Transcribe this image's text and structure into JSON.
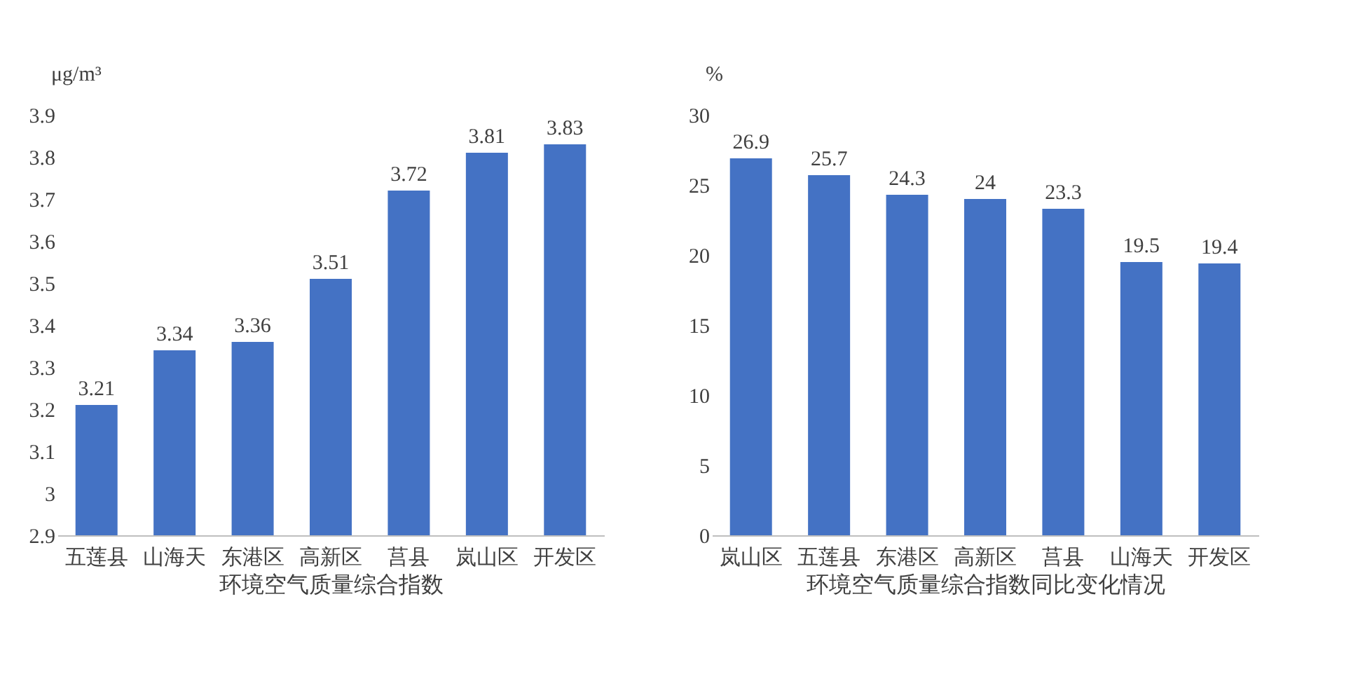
{
  "chart_data": [
    {
      "type": "bar",
      "xlabel": "环境空气质量综合指数",
      "ylabel": "μg/m³",
      "categories": [
        "五莲县",
        "山海天",
        "东港区",
        "高新区",
        "莒县",
        "岚山区",
        "开发区"
      ],
      "values": [
        3.21,
        3.34,
        3.36,
        3.51,
        3.72,
        3.81,
        3.83
      ],
      "color": "#4472c4",
      "ylim": [
        2.9,
        3.9
      ],
      "yticks": [
        2.9,
        3,
        3.1,
        3.2,
        3.3,
        3.4,
        3.5,
        3.6,
        3.7,
        3.8,
        3.9
      ],
      "grid": false,
      "data_labels": true
    },
    {
      "type": "bar",
      "xlabel": "环境空气质量综合指数同比变化情况",
      "ylabel": "%",
      "categories": [
        "岚山区",
        "五莲县",
        "东港区",
        "高新区",
        "莒县",
        "山海天",
        "开发区"
      ],
      "values": [
        26.9,
        25.7,
        24.3,
        24,
        23.3,
        19.5,
        19.4
      ],
      "color": "#4472c4",
      "ylim": [
        0,
        30
      ],
      "yticks": [
        0,
        5,
        10,
        15,
        20,
        25,
        30
      ],
      "grid": false,
      "data_labels": true
    }
  ]
}
